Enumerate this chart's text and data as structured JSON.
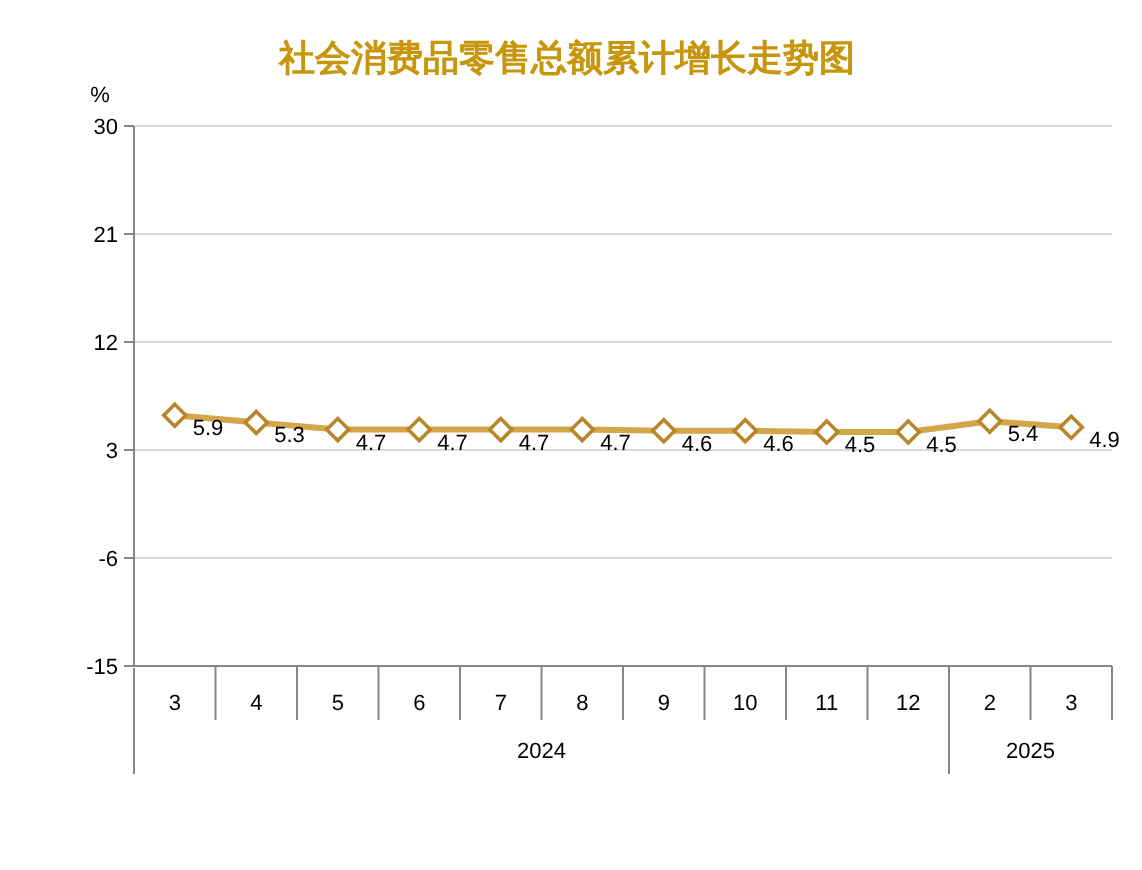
{
  "chart_data": {
    "type": "line",
    "title": "社会消费品零售总额累计增长走势图",
    "ylabel": "%",
    "categories": [
      "3",
      "4",
      "5",
      "6",
      "7",
      "8",
      "9",
      "10",
      "11",
      "12",
      "2",
      "3"
    ],
    "series": [
      {
        "color": "#d4a64a",
        "values": [
          5.9,
          5.3,
          4.7,
          4.7,
          4.7,
          4.7,
          4.6,
          4.6,
          4.5,
          4.5,
          5.4,
          4.9
        ]
      }
    ],
    "ylim": [
      -15,
      30
    ],
    "yticks": [
      -15,
      -6,
      3,
      12,
      21,
      30
    ],
    "grid": "y",
    "marker": "diamond",
    "line_style": "solid",
    "data_labels": true,
    "annotations": [
      "2024",
      "2025"
    ]
  }
}
